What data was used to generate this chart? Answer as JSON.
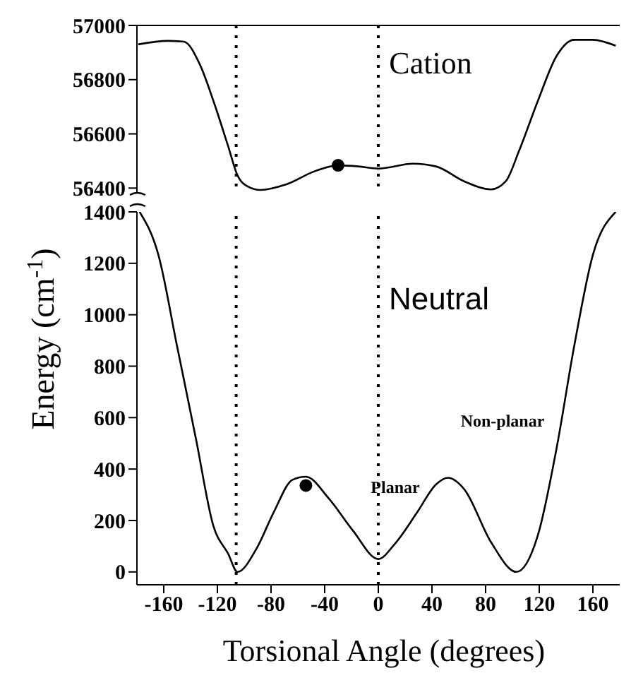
{
  "chart_data": [
    {
      "type": "line",
      "xlim": [
        -180,
        180
      ],
      "ylim": [
        56380,
        57000
      ],
      "yticks": [
        56400,
        56600,
        56800,
        57000
      ],
      "tick_labels": "y",
      "grid": false,
      "line_style": "solid",
      "ref_lines": [
        {
          "axis": "x",
          "value": -106,
          "label": null,
          "line_style": "dotted",
          "color": "#000000"
        },
        {
          "axis": "x",
          "value": 0,
          "label": null,
          "line_style": "dotted",
          "color": "#000000"
        }
      ],
      "annotations": [
        "Cation"
      ],
      "series": [
        {
          "color": "#000000",
          "x": [
            -179,
            -157,
            -145,
            -133,
            -123,
            -112,
            -105,
            -97,
            -88,
            -69,
            -47,
            -30,
            -15,
            0,
            26,
            43,
            64,
            84,
            95,
            105,
            119,
            133,
            146,
            160,
            177
          ],
          "values": [
            56930,
            56943,
            56940,
            56855,
            56722,
            56555,
            56447,
            56405,
            56393,
            56413,
            56463,
            56484,
            56480,
            56472,
            56490,
            56480,
            56425,
            56395,
            56425,
            56538,
            56722,
            56888,
            56947,
            56947,
            56925
          ]
        },
        {
          "type": "scatter",
          "color": "#000000",
          "x": [
            -30
          ],
          "values": [
            56484
          ]
        }
      ]
    },
    {
      "type": "line",
      "xlim": [
        -180,
        180
      ],
      "ylim": [
        -50,
        1400
      ],
      "yticks": [
        0,
        200,
        400,
        600,
        800,
        1000,
        1200,
        1400
      ],
      "xticks": [
        -160,
        -120,
        -80,
        -40,
        0,
        40,
        80,
        120,
        160
      ],
      "grid": false,
      "line_style": "solid",
      "xlabel": "Torsional Angle (degrees)",
      "ylabel": "Energy (cm$^{-1}$)",
      "ref_lines": [
        {
          "axis": "x",
          "value": -106,
          "label": null,
          "line_style": "dotted",
          "color": "#000000"
        },
        {
          "axis": "x",
          "value": 0,
          "label": null,
          "line_style": "dotted",
          "color": "#000000"
        }
      ],
      "annotations": [
        "Neutral",
        "Non-planar",
        "Planar"
      ],
      "series": [
        {
          "color": "#000000",
          "x": [
            -178,
            -164,
            -150,
            -136,
            -123,
            -112,
            -105,
            -91,
            -78,
            -64,
            -54,
            -37,
            -19,
            0,
            12,
            29,
            43,
            52,
            64,
            84,
            103,
            119,
            133,
            146,
            160,
            177
          ],
          "values": [
            1400,
            1233,
            876,
            518,
            179,
            71,
            0,
            89,
            232,
            358,
            370,
            286,
            161,
            50,
            107,
            232,
            340,
            366,
            322,
            116,
            0,
            143,
            483,
            876,
            1233,
            1400
          ]
        },
        {
          "type": "scatter",
          "color": "#000000",
          "x": [
            -54
          ],
          "values": [
            336
          ]
        }
      ]
    }
  ]
}
